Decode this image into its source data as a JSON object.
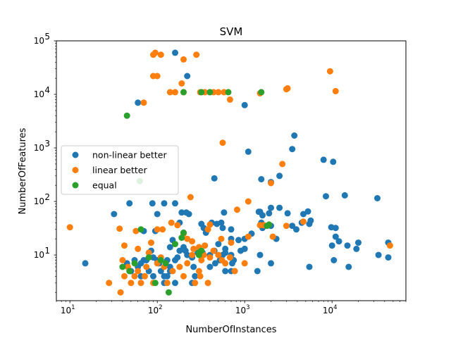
{
  "chart_data": {
    "type": "scatter",
    "title": "SVM",
    "xlabel": "NumberOfInstances",
    "ylabel": "NumberOfFeatures",
    "xscale": "log",
    "yscale": "log",
    "xlim": [
      7,
      70000
    ],
    "ylim": [
      1.4,
      100000
    ],
    "grid": false,
    "legend_position": "center-left",
    "x_ticks": [
      {
        "value": 10,
        "base": "10",
        "exp": "1"
      },
      {
        "value": 100,
        "base": "10",
        "exp": "2"
      },
      {
        "value": 1000,
        "base": "10",
        "exp": "3"
      },
      {
        "value": 10000,
        "base": "10",
        "exp": "4"
      }
    ],
    "y_ticks": [
      {
        "value": 10,
        "base": "10",
        "exp": "1"
      },
      {
        "value": 100,
        "base": "10",
        "exp": "2"
      },
      {
        "value": 1000,
        "base": "10",
        "exp": "3"
      },
      {
        "value": 10000,
        "base": "10",
        "exp": "4"
      },
      {
        "value": 100000,
        "base": "10",
        "exp": "5"
      }
    ],
    "series": [
      {
        "name": "non-linear better",
        "color": "#1f77b4",
        "points": [
          [
            160,
            60000
          ],
          [
            220,
            22000
          ],
          [
            60,
            7000
          ],
          [
            1000,
            6300
          ],
          [
            3700,
            1700
          ],
          [
            3500,
            950
          ],
          [
            1100,
            850
          ],
          [
            8000,
            600
          ],
          [
            10300,
            550
          ],
          [
            450,
            270
          ],
          [
            1550,
            260
          ],
          [
            2500,
            300
          ],
          [
            2000,
            230
          ],
          [
            33000,
            115
          ],
          [
            14000,
            130
          ],
          [
            8500,
            125
          ],
          [
            32,
            58
          ],
          [
            48,
            92
          ],
          [
            88,
            92
          ],
          [
            120,
            92
          ],
          [
            160,
            92
          ],
          [
            100,
            58
          ],
          [
            230,
            58
          ],
          [
            190,
            62
          ],
          [
            215,
            62
          ],
          [
            580,
            62
          ],
          [
            420,
            40
          ],
          [
            320,
            38
          ],
          [
            480,
            38
          ],
          [
            340,
            32
          ],
          [
            360,
            26
          ],
          [
            540,
            40
          ],
          [
            560,
            32
          ],
          [
            700,
            30
          ],
          [
            1200,
            25
          ],
          [
            1500,
            64
          ],
          [
            1900,
            60
          ],
          [
            2000,
            76
          ],
          [
            2500,
            76
          ],
          [
            3100,
            60
          ],
          [
            4700,
            58
          ],
          [
            5300,
            65
          ],
          [
            5700,
            44
          ],
          [
            5500,
            38
          ],
          [
            4500,
            40
          ],
          [
            3500,
            35
          ],
          [
            2300,
            20
          ],
          [
            1550,
            40
          ],
          [
            1600,
            32
          ],
          [
            2000,
            35
          ],
          [
            3900,
            30
          ],
          [
            9800,
            33
          ],
          [
            11000,
            32
          ],
          [
            11000,
            22
          ],
          [
            10000,
            15
          ],
          [
            12000,
            18
          ],
          [
            20000,
            17
          ],
          [
            15000,
            15
          ],
          [
            19000,
            13
          ],
          [
            15500,
            6
          ],
          [
            10500,
            8
          ],
          [
            44000,
            17
          ],
          [
            44000,
            9
          ],
          [
            34000,
            10
          ],
          [
            5500,
            6
          ],
          [
            1400,
            5
          ],
          [
            1500,
            10
          ],
          [
            2000,
            7
          ],
          [
            1000,
            13
          ],
          [
            900,
            12
          ],
          [
            700,
            10
          ],
          [
            750,
            8
          ],
          [
            600,
            11
          ],
          [
            600,
            5
          ],
          [
            700,
            5
          ],
          [
            520,
            8
          ],
          [
            450,
            12
          ],
          [
            460,
            7
          ],
          [
            400,
            6
          ],
          [
            330,
            11
          ],
          [
            290,
            11
          ],
          [
            250,
            9
          ],
          [
            220,
            10
          ],
          [
            200,
            14
          ],
          [
            180,
            12
          ],
          [
            170,
            9
          ],
          [
            160,
            8
          ],
          [
            140,
            6
          ],
          [
            130,
            8
          ],
          [
            140,
            5
          ],
          [
            130,
            4
          ],
          [
            120,
            3
          ],
          [
            120,
            4
          ],
          [
            160,
            3
          ],
          [
            110,
            5
          ],
          [
            105,
            7
          ],
          [
            100,
            8
          ],
          [
            90,
            9
          ],
          [
            85,
            12
          ],
          [
            75,
            8
          ],
          [
            70,
            8
          ],
          [
            65,
            7
          ],
          [
            60,
            6
          ],
          [
            50,
            5
          ],
          [
            45,
            7
          ],
          [
            55,
            8
          ],
          [
            65,
            4
          ],
          [
            80,
            5
          ],
          [
            140,
            14
          ],
          [
            150,
            19
          ],
          [
            180,
            40
          ],
          [
            200,
            26
          ],
          [
            210,
            12
          ],
          [
            250,
            3
          ],
          [
            260,
            6
          ],
          [
            270,
            4
          ],
          [
            90,
            4
          ],
          [
            95,
            28
          ],
          [
            70,
            28
          ],
          [
            1000,
            20
          ],
          [
            850,
            19
          ],
          [
            1450,
            64
          ],
          [
            1600,
            55
          ],
          [
            15,
            7
          ],
          [
            500,
            16
          ],
          [
            600,
            13
          ],
          [
            700,
            20
          ],
          [
            720,
            7
          ],
          [
            560,
            10
          ],
          [
            400,
            10
          ]
        ]
      },
      {
        "name": "linear better",
        "color": "#ff7f0e",
        "points": [
          [
            90,
            55000
          ],
          [
            95,
            60000
          ],
          [
            110,
            55000
          ],
          [
            200,
            45000
          ],
          [
            280,
            55000
          ],
          [
            90,
            22000
          ],
          [
            100,
            22000
          ],
          [
            70,
            7000
          ],
          [
            140,
            11000
          ],
          [
            160,
            11000
          ],
          [
            200,
            11000
          ],
          [
            190,
            16000
          ],
          [
            310,
            11000
          ],
          [
            350,
            11000
          ],
          [
            400,
            11000
          ],
          [
            440,
            11000
          ],
          [
            500,
            11000
          ],
          [
            580,
            11000
          ],
          [
            680,
            8000
          ],
          [
            1500,
            10500
          ],
          [
            3000,
            12500
          ],
          [
            3100,
            13000
          ],
          [
            9500,
            27000
          ],
          [
            11000,
            11500
          ],
          [
            560,
            1250
          ],
          [
            2700,
            500
          ],
          [
            1100,
            100
          ],
          [
            2000,
            220
          ],
          [
            240,
            120
          ],
          [
            10,
            33
          ],
          [
            37,
            31
          ],
          [
            42,
            15
          ],
          [
            57,
            28
          ],
          [
            60,
            13
          ],
          [
            85,
            17
          ],
          [
            100,
            30
          ],
          [
            115,
            30
          ],
          [
            145,
            40
          ],
          [
            170,
            36
          ],
          [
            200,
            25
          ],
          [
            220,
            20
          ],
          [
            250,
            18
          ],
          [
            300,
            14
          ],
          [
            340,
            10
          ],
          [
            380,
            30
          ],
          [
            400,
            37
          ],
          [
            540,
            20
          ],
          [
            700,
            17
          ],
          [
            820,
            70
          ],
          [
            1100,
            22
          ],
          [
            1500,
            36
          ],
          [
            1650,
            36
          ],
          [
            2100,
            22
          ],
          [
            3000,
            35
          ],
          [
            4700,
            42
          ],
          [
            46000,
            15
          ],
          [
            28,
            3
          ],
          [
            38,
            2
          ],
          [
            40,
            8
          ],
          [
            42,
            4
          ],
          [
            46,
            6
          ],
          [
            50,
            3
          ],
          [
            55,
            4
          ],
          [
            60,
            5
          ],
          [
            65,
            3
          ],
          [
            72,
            4
          ],
          [
            75,
            6
          ],
          [
            80,
            11
          ],
          [
            90,
            3
          ],
          [
            100,
            7
          ],
          [
            110,
            9
          ],
          [
            120,
            6
          ],
          [
            130,
            3
          ],
          [
            150,
            5
          ],
          [
            180,
            6
          ],
          [
            200,
            4
          ],
          [
            220,
            7
          ],
          [
            250,
            10
          ],
          [
            270,
            3
          ],
          [
            300,
            5
          ],
          [
            310,
            4
          ],
          [
            330,
            10
          ],
          [
            350,
            15
          ],
          [
            380,
            3
          ],
          [
            400,
            9
          ],
          [
            440,
            12
          ],
          [
            500,
            10
          ],
          [
            550,
            8
          ],
          [
            600,
            7
          ],
          [
            680,
            9
          ],
          [
            770,
            5
          ],
          [
            1000,
            7
          ],
          [
            260,
            13
          ],
          [
            320,
            8
          ]
        ]
      },
      {
        "name": "equal",
        "color": "#2ca02c",
        "points": [
          [
            45,
            4000
          ],
          [
            63,
            240
          ],
          [
            200,
            11000
          ],
          [
            320,
            11000
          ],
          [
            400,
            11000
          ],
          [
            650,
            11000
          ],
          [
            1550,
            11000
          ],
          [
            40,
            6
          ],
          [
            48,
            5
          ],
          [
            55,
            7
          ],
          [
            65,
            30
          ],
          [
            80,
            9
          ],
          [
            95,
            3
          ],
          [
            110,
            8
          ],
          [
            125,
            7
          ],
          [
            135,
            2
          ],
          [
            160,
            16
          ],
          [
            190,
            21
          ],
          [
            200,
            26
          ],
          [
            300,
            10
          ],
          [
            300,
            11
          ],
          [
            320,
            12
          ],
          [
            1800,
            35
          ],
          [
            1900,
            37
          ]
        ]
      }
    ]
  }
}
